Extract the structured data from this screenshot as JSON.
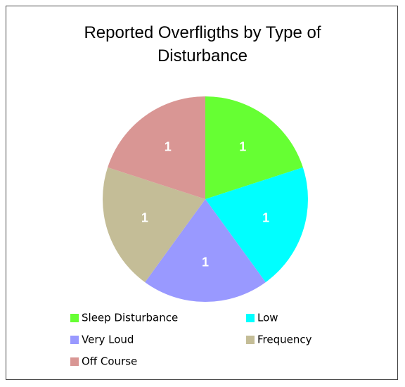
{
  "chart_data": {
    "type": "pie",
    "title": "Reported Overfligths by Type of Disturbance",
    "categories": [
      "Sleep Disturbance",
      "Low",
      "Very Loud",
      "Frequency",
      "Off Course"
    ],
    "values": [
      1,
      1,
      1,
      1,
      1
    ],
    "colors": [
      "#66ff33",
      "#00ffff",
      "#9999ff",
      "#c4bd97",
      "#d99694"
    ],
    "legend": "bottom"
  }
}
